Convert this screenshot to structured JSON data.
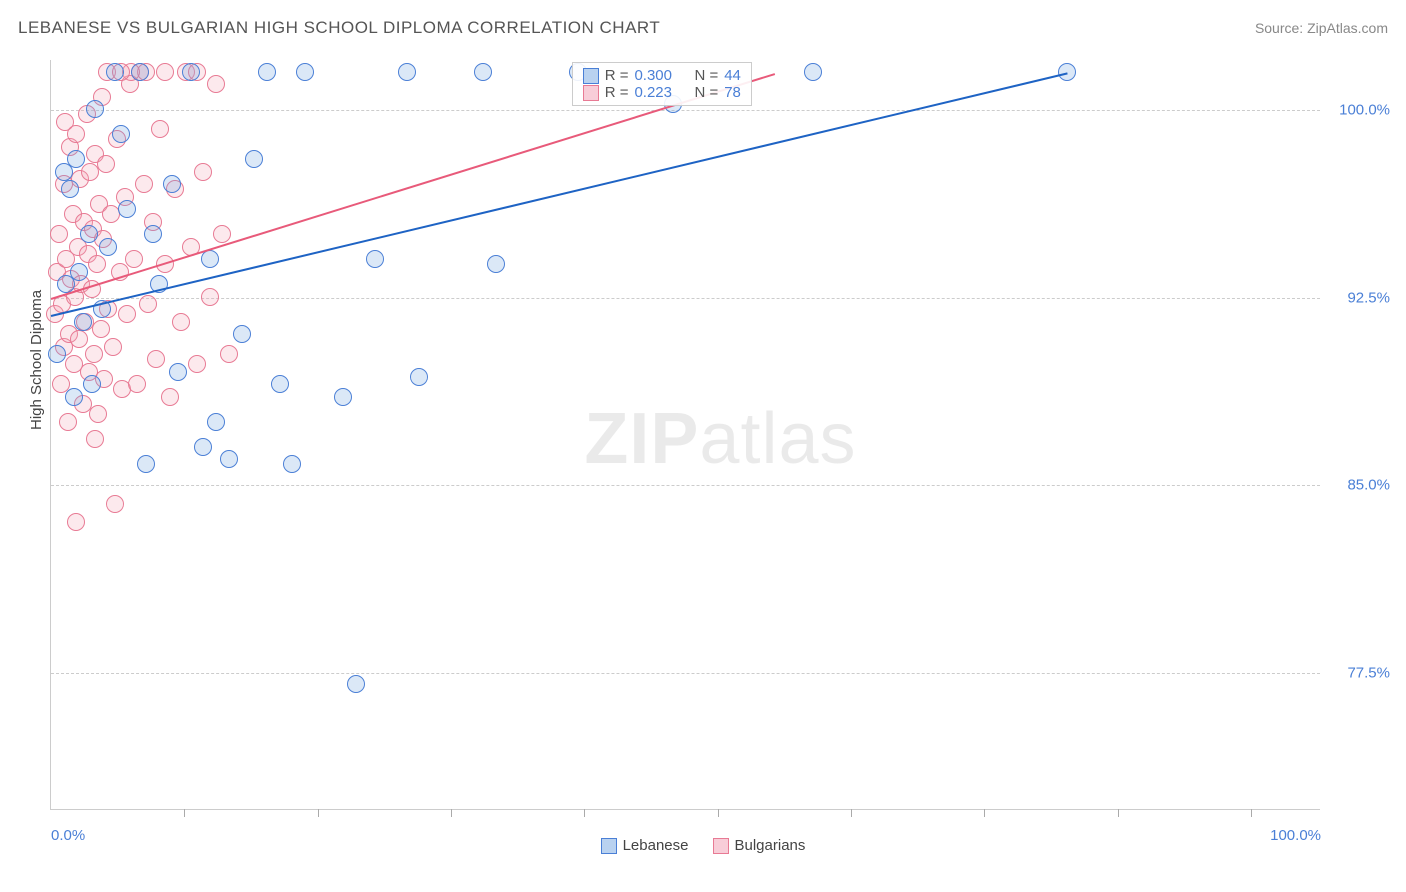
{
  "title": "LEBANESE VS BULGARIAN HIGH SCHOOL DIPLOMA CORRELATION CHART",
  "source": "Source: ZipAtlas.com",
  "y_axis_label": "High School Diploma",
  "watermark": {
    "bold": "ZIP",
    "light": "atlas"
  },
  "chart": {
    "type": "scatter",
    "xlim": [
      0,
      100
    ],
    "ylim": [
      72,
      102
    ],
    "x_ticks_major": [
      0,
      100
    ],
    "x_ticks_minor": [
      10.5,
      21,
      31.5,
      42,
      52.5,
      63,
      73.5,
      84,
      94.5
    ],
    "x_tick_labels": [
      "0.0%",
      "100.0%"
    ],
    "y_ticks": [
      77.5,
      85.0,
      92.5,
      100.0
    ],
    "y_tick_labels": [
      "77.5%",
      "85.0%",
      "92.5%",
      "100.0%"
    ],
    "grid_color": "#cccccc",
    "background_color": "#ffffff",
    "axis_color": "#cccccc",
    "tick_label_color": "#4a7fd6",
    "marker_radius": 9,
    "marker_stroke_width": 1.5,
    "marker_fill_opacity": 0.25,
    "series": [
      {
        "name": "Lebanese",
        "color": "#6ea4e0",
        "stroke": "#4a7fd6",
        "trend_color": "#1e63c4",
        "R": "0.300",
        "N": "44",
        "trend": {
          "x1": 0,
          "y1": 91.8,
          "x2": 80,
          "y2": 101.5
        },
        "points": [
          [
            0.5,
            90.2
          ],
          [
            1.0,
            97.5
          ],
          [
            1.2,
            93.0
          ],
          [
            1.5,
            96.8
          ],
          [
            1.8,
            88.5
          ],
          [
            2.0,
            98.0
          ],
          [
            2.2,
            93.5
          ],
          [
            2.5,
            91.5
          ],
          [
            3.0,
            95.0
          ],
          [
            3.2,
            89.0
          ],
          [
            3.5,
            100.0
          ],
          [
            4.0,
            92.0
          ],
          [
            4.5,
            94.5
          ],
          [
            5.0,
            101.5
          ],
          [
            5.5,
            99.0
          ],
          [
            6.0,
            96.0
          ],
          [
            7.0,
            101.5
          ],
          [
            7.5,
            85.8
          ],
          [
            8.0,
            95.0
          ],
          [
            8.5,
            93.0
          ],
          [
            9.5,
            97.0
          ],
          [
            10.0,
            89.5
          ],
          [
            11.0,
            101.5
          ],
          [
            12.0,
            86.5
          ],
          [
            12.5,
            94.0
          ],
          [
            13.0,
            87.5
          ],
          [
            14.0,
            86.0
          ],
          [
            15.0,
            91.0
          ],
          [
            16.0,
            98.0
          ],
          [
            17.0,
            101.5
          ],
          [
            18.0,
            89.0
          ],
          [
            19.0,
            85.8
          ],
          [
            20.0,
            101.5
          ],
          [
            23.0,
            88.5
          ],
          [
            24.0,
            77.0
          ],
          [
            25.5,
            94.0
          ],
          [
            28.0,
            101.5
          ],
          [
            29.0,
            89.3
          ],
          [
            34.0,
            101.5
          ],
          [
            35.0,
            93.8
          ],
          [
            41.5,
            101.5
          ],
          [
            49.0,
            100.2
          ],
          [
            60.0,
            101.5
          ],
          [
            80.0,
            101.5
          ]
        ]
      },
      {
        "name": "Bulgarians",
        "color": "#f2a8b8",
        "stroke": "#e87a94",
        "trend_color": "#e85a7a",
        "R": "0.223",
        "N": "78",
        "trend": {
          "x1": 0,
          "y1": 92.5,
          "x2": 57,
          "y2": 101.5
        },
        "points": [
          [
            0.3,
            91.8
          ],
          [
            0.5,
            93.5
          ],
          [
            0.6,
            95.0
          ],
          [
            0.8,
            89.0
          ],
          [
            0.9,
            92.2
          ],
          [
            1.0,
            97.0
          ],
          [
            1.0,
            90.5
          ],
          [
            1.1,
            99.5
          ],
          [
            1.2,
            94.0
          ],
          [
            1.3,
            87.5
          ],
          [
            1.4,
            91.0
          ],
          [
            1.5,
            98.5
          ],
          [
            1.6,
            93.2
          ],
          [
            1.7,
            95.8
          ],
          [
            1.8,
            89.8
          ],
          [
            1.9,
            92.5
          ],
          [
            2.0,
            99.0
          ],
          [
            2.1,
            94.5
          ],
          [
            2.2,
            90.8
          ],
          [
            2.3,
            97.2
          ],
          [
            2.4,
            93.0
          ],
          [
            2.5,
            88.2
          ],
          [
            2.6,
            95.5
          ],
          [
            2.7,
            91.5
          ],
          [
            2.8,
            99.8
          ],
          [
            2.9,
            94.2
          ],
          [
            3.0,
            89.5
          ],
          [
            3.1,
            97.5
          ],
          [
            3.2,
            92.8
          ],
          [
            3.3,
            95.2
          ],
          [
            3.4,
            90.2
          ],
          [
            3.5,
            98.2
          ],
          [
            3.6,
            93.8
          ],
          [
            3.7,
            87.8
          ],
          [
            3.8,
            96.2
          ],
          [
            3.9,
            91.2
          ],
          [
            4.0,
            100.5
          ],
          [
            4.1,
            94.8
          ],
          [
            4.2,
            89.2
          ],
          [
            4.3,
            97.8
          ],
          [
            4.5,
            92.0
          ],
          [
            4.7,
            95.8
          ],
          [
            4.9,
            90.5
          ],
          [
            5.0,
            84.2
          ],
          [
            5.2,
            98.8
          ],
          [
            5.4,
            93.5
          ],
          [
            5.6,
            88.8
          ],
          [
            5.8,
            96.5
          ],
          [
            6.0,
            91.8
          ],
          [
            6.2,
            101.0
          ],
          [
            6.5,
            94.0
          ],
          [
            6.8,
            89.0
          ],
          [
            7.0,
            101.5
          ],
          [
            7.3,
            97.0
          ],
          [
            7.6,
            92.2
          ],
          [
            8.0,
            95.5
          ],
          [
            8.3,
            90.0
          ],
          [
            8.6,
            99.2
          ],
          [
            9.0,
            93.8
          ],
          [
            9.4,
            88.5
          ],
          [
            9.8,
            96.8
          ],
          [
            10.2,
            91.5
          ],
          [
            10.6,
            101.5
          ],
          [
            11.0,
            94.5
          ],
          [
            11.5,
            89.8
          ],
          [
            12.0,
            97.5
          ],
          [
            12.5,
            92.5
          ],
          [
            13.0,
            101.0
          ],
          [
            13.5,
            95.0
          ],
          [
            14.0,
            90.2
          ],
          [
            7.5,
            101.5
          ],
          [
            6.3,
            101.5
          ],
          [
            4.4,
            101.5
          ],
          [
            2.0,
            83.5
          ],
          [
            3.5,
            86.8
          ],
          [
            5.5,
            101.5
          ],
          [
            9.0,
            101.5
          ],
          [
            11.5,
            101.5
          ]
        ]
      }
    ]
  },
  "stats_legend": {
    "rows": [
      {
        "swatch_fill": "#b9d2f0",
        "swatch_border": "#4a7fd6",
        "R_label": "R = ",
        "R_val": "0.300",
        "N_label": "N = ",
        "N_val": "44",
        "val_color": "#4a7fd6"
      },
      {
        "swatch_fill": "#f8cdd8",
        "swatch_border": "#e87a94",
        "R_label": "R = ",
        "R_val": "0.223",
        "N_label": "N = ",
        "N_val": "78",
        "val_color": "#4a7fd6"
      }
    ]
  },
  "bottom_legend": [
    {
      "label": "Lebanese",
      "fill": "#b9d2f0",
      "border": "#4a7fd6"
    },
    {
      "label": "Bulgarians",
      "fill": "#f8cdd8",
      "border": "#e87a94"
    }
  ]
}
